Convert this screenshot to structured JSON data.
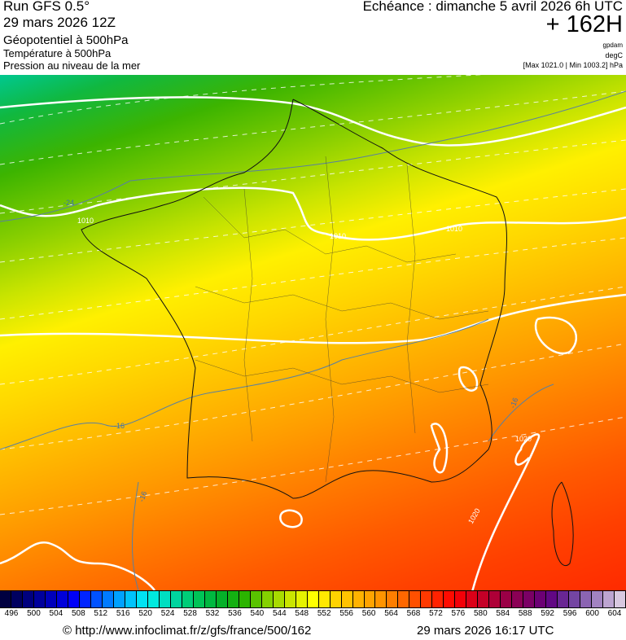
{
  "header": {
    "run": "Run GFS 0.5°",
    "run_date": "29 mars 2026 12Z",
    "field_main": "Géopotentiel à 500hPa",
    "field_temp": "Température à 500hPa",
    "field_pressure": "Pression au niveau de la mer",
    "echeance": "Echéance : dimanche 5 avril 2026 6h UTC",
    "lead_time": "+ 162H",
    "unit_geopotential": "gpdam",
    "unit_temp": "degC",
    "pressure_range": "[Max 1021.0 | Min 1003.2] hPa"
  },
  "map": {
    "isobar_labels": [
      "1010",
      "1010",
      "1010",
      "1020",
      "1020"
    ],
    "isotherm_labels": [
      "-24",
      "-16",
      "-16",
      "-16"
    ]
  },
  "colorbar": {
    "labels": [
      "496",
      "500",
      "504",
      "508",
      "512",
      "516",
      "520",
      "524",
      "528",
      "532",
      "536",
      "540",
      "544",
      "548",
      "552",
      "556",
      "560",
      "564",
      "568",
      "572",
      "576",
      "580",
      "584",
      "588",
      "592",
      "596",
      "600",
      "604"
    ],
    "colors": [
      "#000040",
      "#000080",
      "#0000c0",
      "#0000ff",
      "#0060ff",
      "#00b0ff",
      "#00f0f0",
      "#00d8b0",
      "#00c860",
      "#00b030",
      "#20b000",
      "#80d000",
      "#c8e400",
      "#ffff00",
      "#ffd000",
      "#ffb000",
      "#ff9000",
      "#ff6000",
      "#ff3000",
      "#ff0000",
      "#d00020",
      "#a00040",
      "#800060",
      "#600080",
      "#7040a0",
      "#a080c0",
      "#d8c8e0"
    ]
  },
  "footer": {
    "url": "© http://www.infoclimat.fr/z/gfs/france/500/162",
    "timestamp": "29 mars 2026 16:17 UTC"
  }
}
